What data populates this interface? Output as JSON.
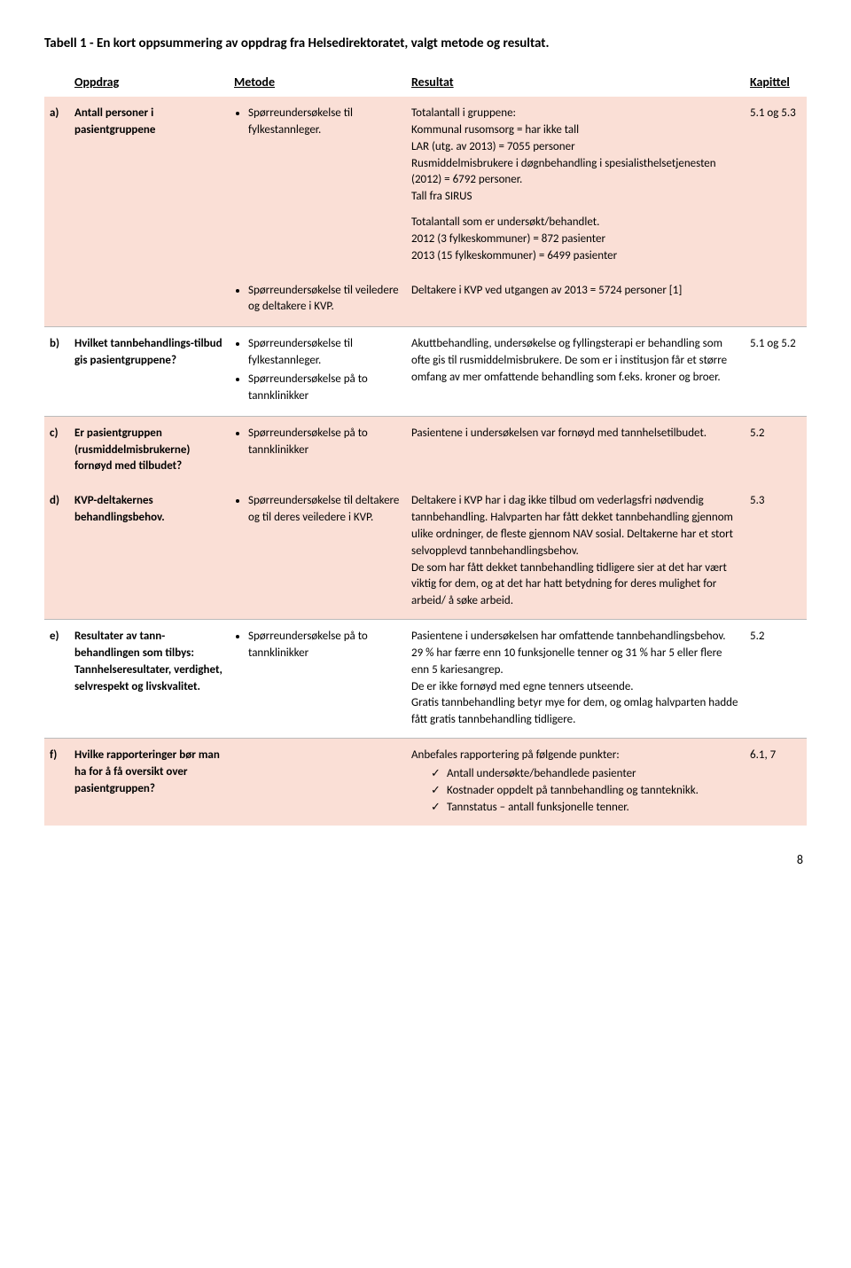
{
  "title": "Tabell 1 - En kort oppsummering av oppdrag fra Helsedirektoratet, valgt metode og resultat.",
  "headers": {
    "oppdrag": "Oppdrag",
    "metode": "Metode",
    "resultat": "Resultat",
    "kapittel": "Kapittel"
  },
  "rows": {
    "a": {
      "letter": "a)",
      "oppdrag": "Antall personer i pasientgruppene",
      "metode1": "Spørreundersøkelse til fylkestannleger.",
      "metode2": "Spørreundersøkelse til veiledere og deltakere i KVP.",
      "res_p1": "Totalantall i gruppene:\nKommunal rusomsorg = har ikke tall\nLAR (utg. av 2013) = 7055 personer\nRusmiddelmisbrukere i døgnbehandling i spesialisthelsetjenesten (2012) = 6792 personer.\nTall fra SIRUS",
      "res_p2": "Totalantall som er undersøkt/behandlet.\n2012 (3 fylkeskommuner) = 872 pasienter\n2013 (15 fylkeskommuner) = 6499 pasienter",
      "res_p3": "Deltakere i KVP ved utgangen av 2013 = 5724 personer [1]",
      "kapittel": "5.1 og 5.3"
    },
    "b": {
      "letter": "b)",
      "oppdrag": "Hvilket tannbehandlings-tilbud gis pasientgruppene?",
      "metode1": "Spørreundersøkelse til fylkestannleger.",
      "metode2": "Spørreundersøkelse på to tannklinikker",
      "resultat": "Akuttbehandling, undersøkelse og fyllingsterapi er behandling som ofte gis til rusmiddelmisbrukere. De som er i institusjon får et større omfang av mer omfattende behandling som f.eks. kroner og broer.",
      "kapittel": "5.1 og 5.2"
    },
    "c": {
      "letter": "c)",
      "oppdrag": "Er pasientgruppen (rusmiddelmisbrukerne) fornøyd med tilbudet?",
      "metode1": "Spørreundersøkelse på to tannklinikker",
      "resultat": "Pasientene i undersøkelsen var fornøyd med tannhelsetilbudet.",
      "kapittel": "5.2"
    },
    "d": {
      "letter": "d)",
      "oppdrag": "KVP-deltakernes behandlingsbehov.",
      "metode1": "Spørreundersøkelse til deltakere og til deres veiledere i KVP.",
      "resultat": "Deltakere i KVP har i dag ikke tilbud om vederlagsfri nødvendig tannbehandling. Halvparten har fått dekket tannbehandling gjennom ulike ordninger, de fleste gjennom NAV sosial. Deltakerne har et stort selvopplevd tannbehandlingsbehov.\nDe som har fått dekket tannbehandling tidligere sier at det har vært viktig for dem, og at det har hatt betydning for deres mulighet for arbeid/ å søke arbeid.",
      "kapittel": "5.3"
    },
    "e": {
      "letter": "e)",
      "oppdrag": "Resultater av tann-behandlingen som tilbys: Tannhelseresultater, verdighet, selvrespekt og livskvalitet.",
      "metode1": "Spørreundersøkelse på to tannklinikker",
      "resultat": "Pasientene i undersøkelsen har omfattende tannbehandlingsbehov. 29 % har færre enn 10 funksjonelle tenner og 31 % har 5 eller flere enn 5 kariesangrep.\nDe er ikke fornøyd med egne tenners utseende.\nGratis tannbehandling betyr mye for dem, og omlag halvparten hadde fått gratis tannbehandling tidligere.",
      "kapittel": "5.2"
    },
    "f": {
      "letter": "f)",
      "oppdrag": "Hvilke rapporteringer bør man ha for å få oversikt over pasientgruppen?",
      "res_intro": "Anbefales rapportering på følgende punkter:",
      "check1": "Antall undersøkte/behandlede pasienter",
      "check2": "Kostnader oppdelt på tannbehandling og tannteknikk.",
      "check3": "Tannstatus – antall funksjonelle tenner.",
      "kapittel": "6.1, 7"
    }
  },
  "page_number": "8"
}
